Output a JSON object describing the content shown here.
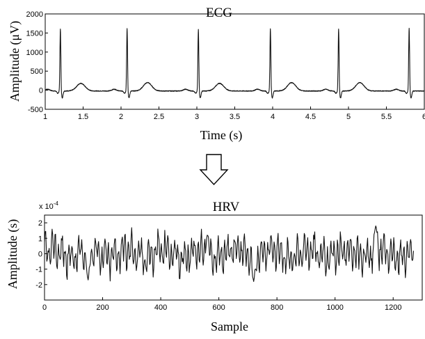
{
  "chart_data": [
    {
      "type": "line",
      "title": "ECG",
      "xlabel": "Time (s)",
      "ylabel": "Amplitude (μV)",
      "xlim": [
        1,
        6
      ],
      "ylim": [
        -500,
        2000
      ],
      "xticks": [
        "1",
        "1.5",
        "2",
        "2.5",
        "3",
        "3.5",
        "4",
        "4.5",
        "5",
        "5.5",
        "6"
      ],
      "yticks": [
        "-500",
        "0",
        "500",
        "1000",
        "1500",
        "2000"
      ],
      "grid": false,
      "series": [
        {
          "r_peaks": [
            {
              "x": 1.2,
              "y": 1620
            },
            {
              "x": 2.08,
              "y": 1630
            },
            {
              "x": 3.02,
              "y": 1610
            },
            {
              "x": 3.97,
              "y": 1620
            },
            {
              "x": 4.87,
              "y": 1620
            },
            {
              "x": 5.8,
              "y": 1640
            }
          ],
          "t_waves": [
            {
              "x": 1.47,
              "y": 180
            },
            {
              "x": 2.35,
              "y": 200
            },
            {
              "x": 3.3,
              "y": 180
            },
            {
              "x": 4.25,
              "y": 200
            },
            {
              "x": 5.15,
              "y": 200
            }
          ],
          "baseline": -20
        }
      ]
    },
    {
      "type": "line",
      "title": "HRV",
      "xlabel": "Sample",
      "ylabel": "Amplitude (s)",
      "y_multiplier": "x 10",
      "y_multiplier_exp": "-4",
      "xlim": [
        0,
        1300
      ],
      "ylim": [
        -3,
        2.5
      ],
      "xticks": [
        "0",
        "200",
        "400",
        "600",
        "800",
        "1000",
        "1200"
      ],
      "yticks": [
        "-2",
        "-1",
        "0",
        "1",
        "2"
      ],
      "grid": false,
      "series": [
        {
          "n_samples": 1270,
          "amplitude_range": [
            -1.8,
            1.8
          ],
          "notable_points": [
            {
              "x": 150,
              "y": -1.7
            },
            {
              "x": 720,
              "y": -1.8
            },
            {
              "x": 560,
              "y": 1.2
            },
            {
              "x": 1140,
              "y": 1.8
            }
          ]
        }
      ]
    }
  ],
  "arrow": {
    "icon": "down-arrow-icon",
    "color": "#000000"
  }
}
